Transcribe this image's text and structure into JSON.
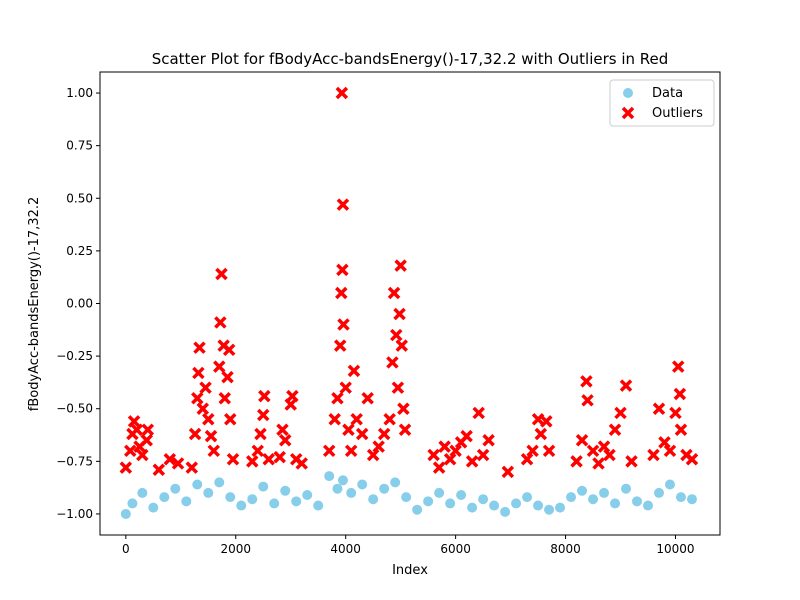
{
  "chart_data": {
    "type": "scatter",
    "title": "Scatter Plot for fBodyAcc-bandsEnergy()-17,32.2 with Outliers in Red",
    "xlabel": "Index",
    "ylabel": "fBodyAcc-bandsEnergy()-17,32.2",
    "xlim": [
      -470,
      10810
    ],
    "ylim": [
      -1.1,
      1.1
    ],
    "x_ticks": [
      0,
      2000,
      4000,
      6000,
      8000,
      10000
    ],
    "x_tick_labels": [
      "0",
      "2000",
      "4000",
      "6000",
      "8000",
      "10000"
    ],
    "y_ticks": [
      -1.0,
      -0.75,
      -0.5,
      -0.25,
      0.0,
      0.25,
      0.5,
      0.75,
      1.0
    ],
    "y_tick_labels": [
      "−1.00",
      "−0.75",
      "−0.50",
      "−0.25",
      "0.00",
      "0.25",
      "0.50",
      "0.75",
      "1.00"
    ],
    "grid": false,
    "legend_position": "top-right",
    "series": [
      {
        "name": "Data",
        "color": "#87CEEB",
        "marker": "circle",
        "points": [
          [
            0,
            -1.0
          ],
          [
            120,
            -0.95
          ],
          [
            300,
            -0.9
          ],
          [
            500,
            -0.97
          ],
          [
            700,
            -0.92
          ],
          [
            900,
            -0.88
          ],
          [
            1100,
            -0.94
          ],
          [
            1300,
            -0.86
          ],
          [
            1500,
            -0.9
          ],
          [
            1700,
            -0.85
          ],
          [
            1900,
            -0.92
          ],
          [
            2100,
            -0.96
          ],
          [
            2300,
            -0.93
          ],
          [
            2500,
            -0.87
          ],
          [
            2700,
            -0.95
          ],
          [
            2900,
            -0.89
          ],
          [
            3100,
            -0.94
          ],
          [
            3300,
            -0.91
          ],
          [
            3500,
            -0.96
          ],
          [
            3700,
            -0.82
          ],
          [
            3850,
            -0.88
          ],
          [
            3950,
            -0.84
          ],
          [
            4100,
            -0.9
          ],
          [
            4300,
            -0.86
          ],
          [
            4500,
            -0.93
          ],
          [
            4700,
            -0.88
          ],
          [
            4900,
            -0.85
          ],
          [
            5100,
            -0.92
          ],
          [
            5300,
            -0.98
          ],
          [
            5500,
            -0.94
          ],
          [
            5700,
            -0.9
          ],
          [
            5900,
            -0.95
          ],
          [
            6100,
            -0.91
          ],
          [
            6300,
            -0.97
          ],
          [
            6500,
            -0.93
          ],
          [
            6700,
            -0.96
          ],
          [
            6900,
            -0.99
          ],
          [
            7100,
            -0.95
          ],
          [
            7300,
            -0.92
          ],
          [
            7500,
            -0.96
          ],
          [
            7700,
            -0.98
          ],
          [
            7900,
            -0.97
          ],
          [
            8100,
            -0.92
          ],
          [
            8300,
            -0.89
          ],
          [
            8500,
            -0.93
          ],
          [
            8700,
            -0.9
          ],
          [
            8900,
            -0.95
          ],
          [
            9100,
            -0.88
          ],
          [
            9300,
            -0.94
          ],
          [
            9500,
            -0.96
          ],
          [
            9700,
            -0.9
          ],
          [
            9900,
            -0.86
          ],
          [
            10100,
            -0.92
          ],
          [
            10300,
            -0.93
          ]
        ]
      },
      {
        "name": "Outliers",
        "color": "#FF0000",
        "marker": "x",
        "points": [
          [
            0,
            -0.78
          ],
          [
            80,
            -0.7
          ],
          [
            120,
            -0.62
          ],
          [
            150,
            -0.56
          ],
          [
            200,
            -0.6
          ],
          [
            250,
            -0.68
          ],
          [
            300,
            -0.72
          ],
          [
            380,
            -0.65
          ],
          [
            400,
            -0.6
          ],
          [
            600,
            -0.79
          ],
          [
            800,
            -0.74
          ],
          [
            950,
            -0.76
          ],
          [
            1200,
            -0.78
          ],
          [
            1260,
            -0.62
          ],
          [
            1300,
            -0.45
          ],
          [
            1320,
            -0.33
          ],
          [
            1340,
            -0.21
          ],
          [
            1400,
            -0.5
          ],
          [
            1450,
            -0.4
          ],
          [
            1500,
            -0.55
          ],
          [
            1550,
            -0.63
          ],
          [
            1600,
            -0.7
          ],
          [
            1700,
            -0.3
          ],
          [
            1720,
            -0.09
          ],
          [
            1740,
            0.14
          ],
          [
            1780,
            -0.2
          ],
          [
            1800,
            -0.45
          ],
          [
            1850,
            -0.35
          ],
          [
            1880,
            -0.22
          ],
          [
            1900,
            -0.55
          ],
          [
            1950,
            -0.74
          ],
          [
            2300,
            -0.75
          ],
          [
            2400,
            -0.7
          ],
          [
            2450,
            -0.62
          ],
          [
            2500,
            -0.53
          ],
          [
            2520,
            -0.44
          ],
          [
            2600,
            -0.74
          ],
          [
            2800,
            -0.73
          ],
          [
            2850,
            -0.6
          ],
          [
            2900,
            -0.65
          ],
          [
            3000,
            -0.48
          ],
          [
            3030,
            -0.44
          ],
          [
            3100,
            -0.74
          ],
          [
            3200,
            -0.76
          ],
          [
            3700,
            -0.7
          ],
          [
            3800,
            -0.55
          ],
          [
            3850,
            -0.45
          ],
          [
            3900,
            -0.2
          ],
          [
            3920,
            0.05
          ],
          [
            3940,
            0.16
          ],
          [
            3950,
            0.47
          ],
          [
            3930,
            1.0
          ],
          [
            3960,
            -0.1
          ],
          [
            4000,
            -0.4
          ],
          [
            4050,
            -0.6
          ],
          [
            4100,
            -0.7
          ],
          [
            4150,
            -0.32
          ],
          [
            4200,
            -0.55
          ],
          [
            4300,
            -0.62
          ],
          [
            4400,
            -0.45
          ],
          [
            4500,
            -0.72
          ],
          [
            4600,
            -0.68
          ],
          [
            4700,
            -0.62
          ],
          [
            4800,
            -0.55
          ],
          [
            4850,
            -0.28
          ],
          [
            4880,
            0.05
          ],
          [
            4920,
            -0.15
          ],
          [
            4950,
            -0.4
          ],
          [
            4980,
            -0.05
          ],
          [
            5000,
            0.18
          ],
          [
            5020,
            -0.2
          ],
          [
            5050,
            -0.5
          ],
          [
            5080,
            -0.6
          ],
          [
            5600,
            -0.72
          ],
          [
            5700,
            -0.78
          ],
          [
            5800,
            -0.68
          ],
          [
            5900,
            -0.74
          ],
          [
            6000,
            -0.7
          ],
          [
            6100,
            -0.66
          ],
          [
            6200,
            -0.63
          ],
          [
            6300,
            -0.75
          ],
          [
            6420,
            -0.52
          ],
          [
            6500,
            -0.72
          ],
          [
            6600,
            -0.65
          ],
          [
            6950,
            -0.8
          ],
          [
            7300,
            -0.74
          ],
          [
            7400,
            -0.7
          ],
          [
            7500,
            -0.55
          ],
          [
            7550,
            -0.62
          ],
          [
            7650,
            -0.56
          ],
          [
            7700,
            -0.7
          ],
          [
            8200,
            -0.75
          ],
          [
            8300,
            -0.65
          ],
          [
            8380,
            -0.37
          ],
          [
            8400,
            -0.46
          ],
          [
            8500,
            -0.7
          ],
          [
            8600,
            -0.76
          ],
          [
            8700,
            -0.68
          ],
          [
            8800,
            -0.72
          ],
          [
            8900,
            -0.6
          ],
          [
            9000,
            -0.52
          ],
          [
            9100,
            -0.39
          ],
          [
            9200,
            -0.75
          ],
          [
            9600,
            -0.72
          ],
          [
            9700,
            -0.5
          ],
          [
            9800,
            -0.66
          ],
          [
            9900,
            -0.7
          ],
          [
            10000,
            -0.52
          ],
          [
            10050,
            -0.3
          ],
          [
            10080,
            -0.43
          ],
          [
            10100,
            -0.6
          ],
          [
            10200,
            -0.72
          ],
          [
            10300,
            -0.74
          ]
        ]
      }
    ]
  }
}
